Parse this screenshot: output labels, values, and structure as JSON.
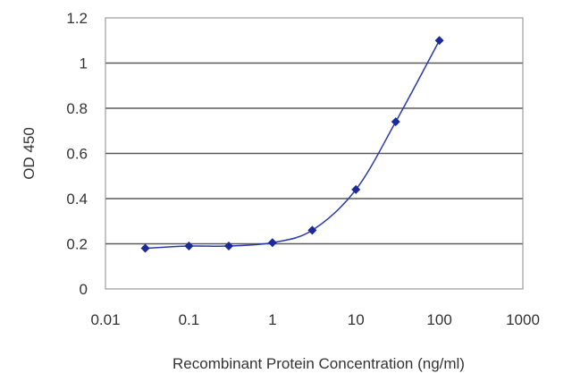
{
  "chart_data": {
    "type": "scatter",
    "title": "",
    "xlabel": "Recombinant Protein Concentration (ng/ml)",
    "ylabel": "OD 450",
    "x_scale": "log",
    "xlim": [
      0.01,
      1000
    ],
    "ylim": [
      0,
      1.2
    ],
    "x_ticks": [
      0.01,
      0.1,
      1,
      10,
      100,
      1000
    ],
    "x_tick_labels": [
      "0.01",
      "0.1",
      "1",
      "10",
      "100",
      "1000"
    ],
    "y_ticks": [
      0,
      0.2,
      0.4,
      0.6,
      0.8,
      1,
      1.2
    ],
    "y_tick_labels": [
      "0",
      "0.2",
      "0.4",
      "0.6",
      "0.8",
      "1",
      "1.2"
    ],
    "grid": "horizontal",
    "legend": "none",
    "series": [
      {
        "x": [
          0.03,
          0.1,
          0.3,
          1,
          3,
          10,
          30,
          100
        ],
        "y": [
          0.18,
          0.19,
          0.19,
          0.205,
          0.26,
          0.44,
          0.74,
          1.1
        ],
        "marker": "diamond",
        "color": "#1a2a9a",
        "fit_line": "sigmoid"
      }
    ]
  }
}
